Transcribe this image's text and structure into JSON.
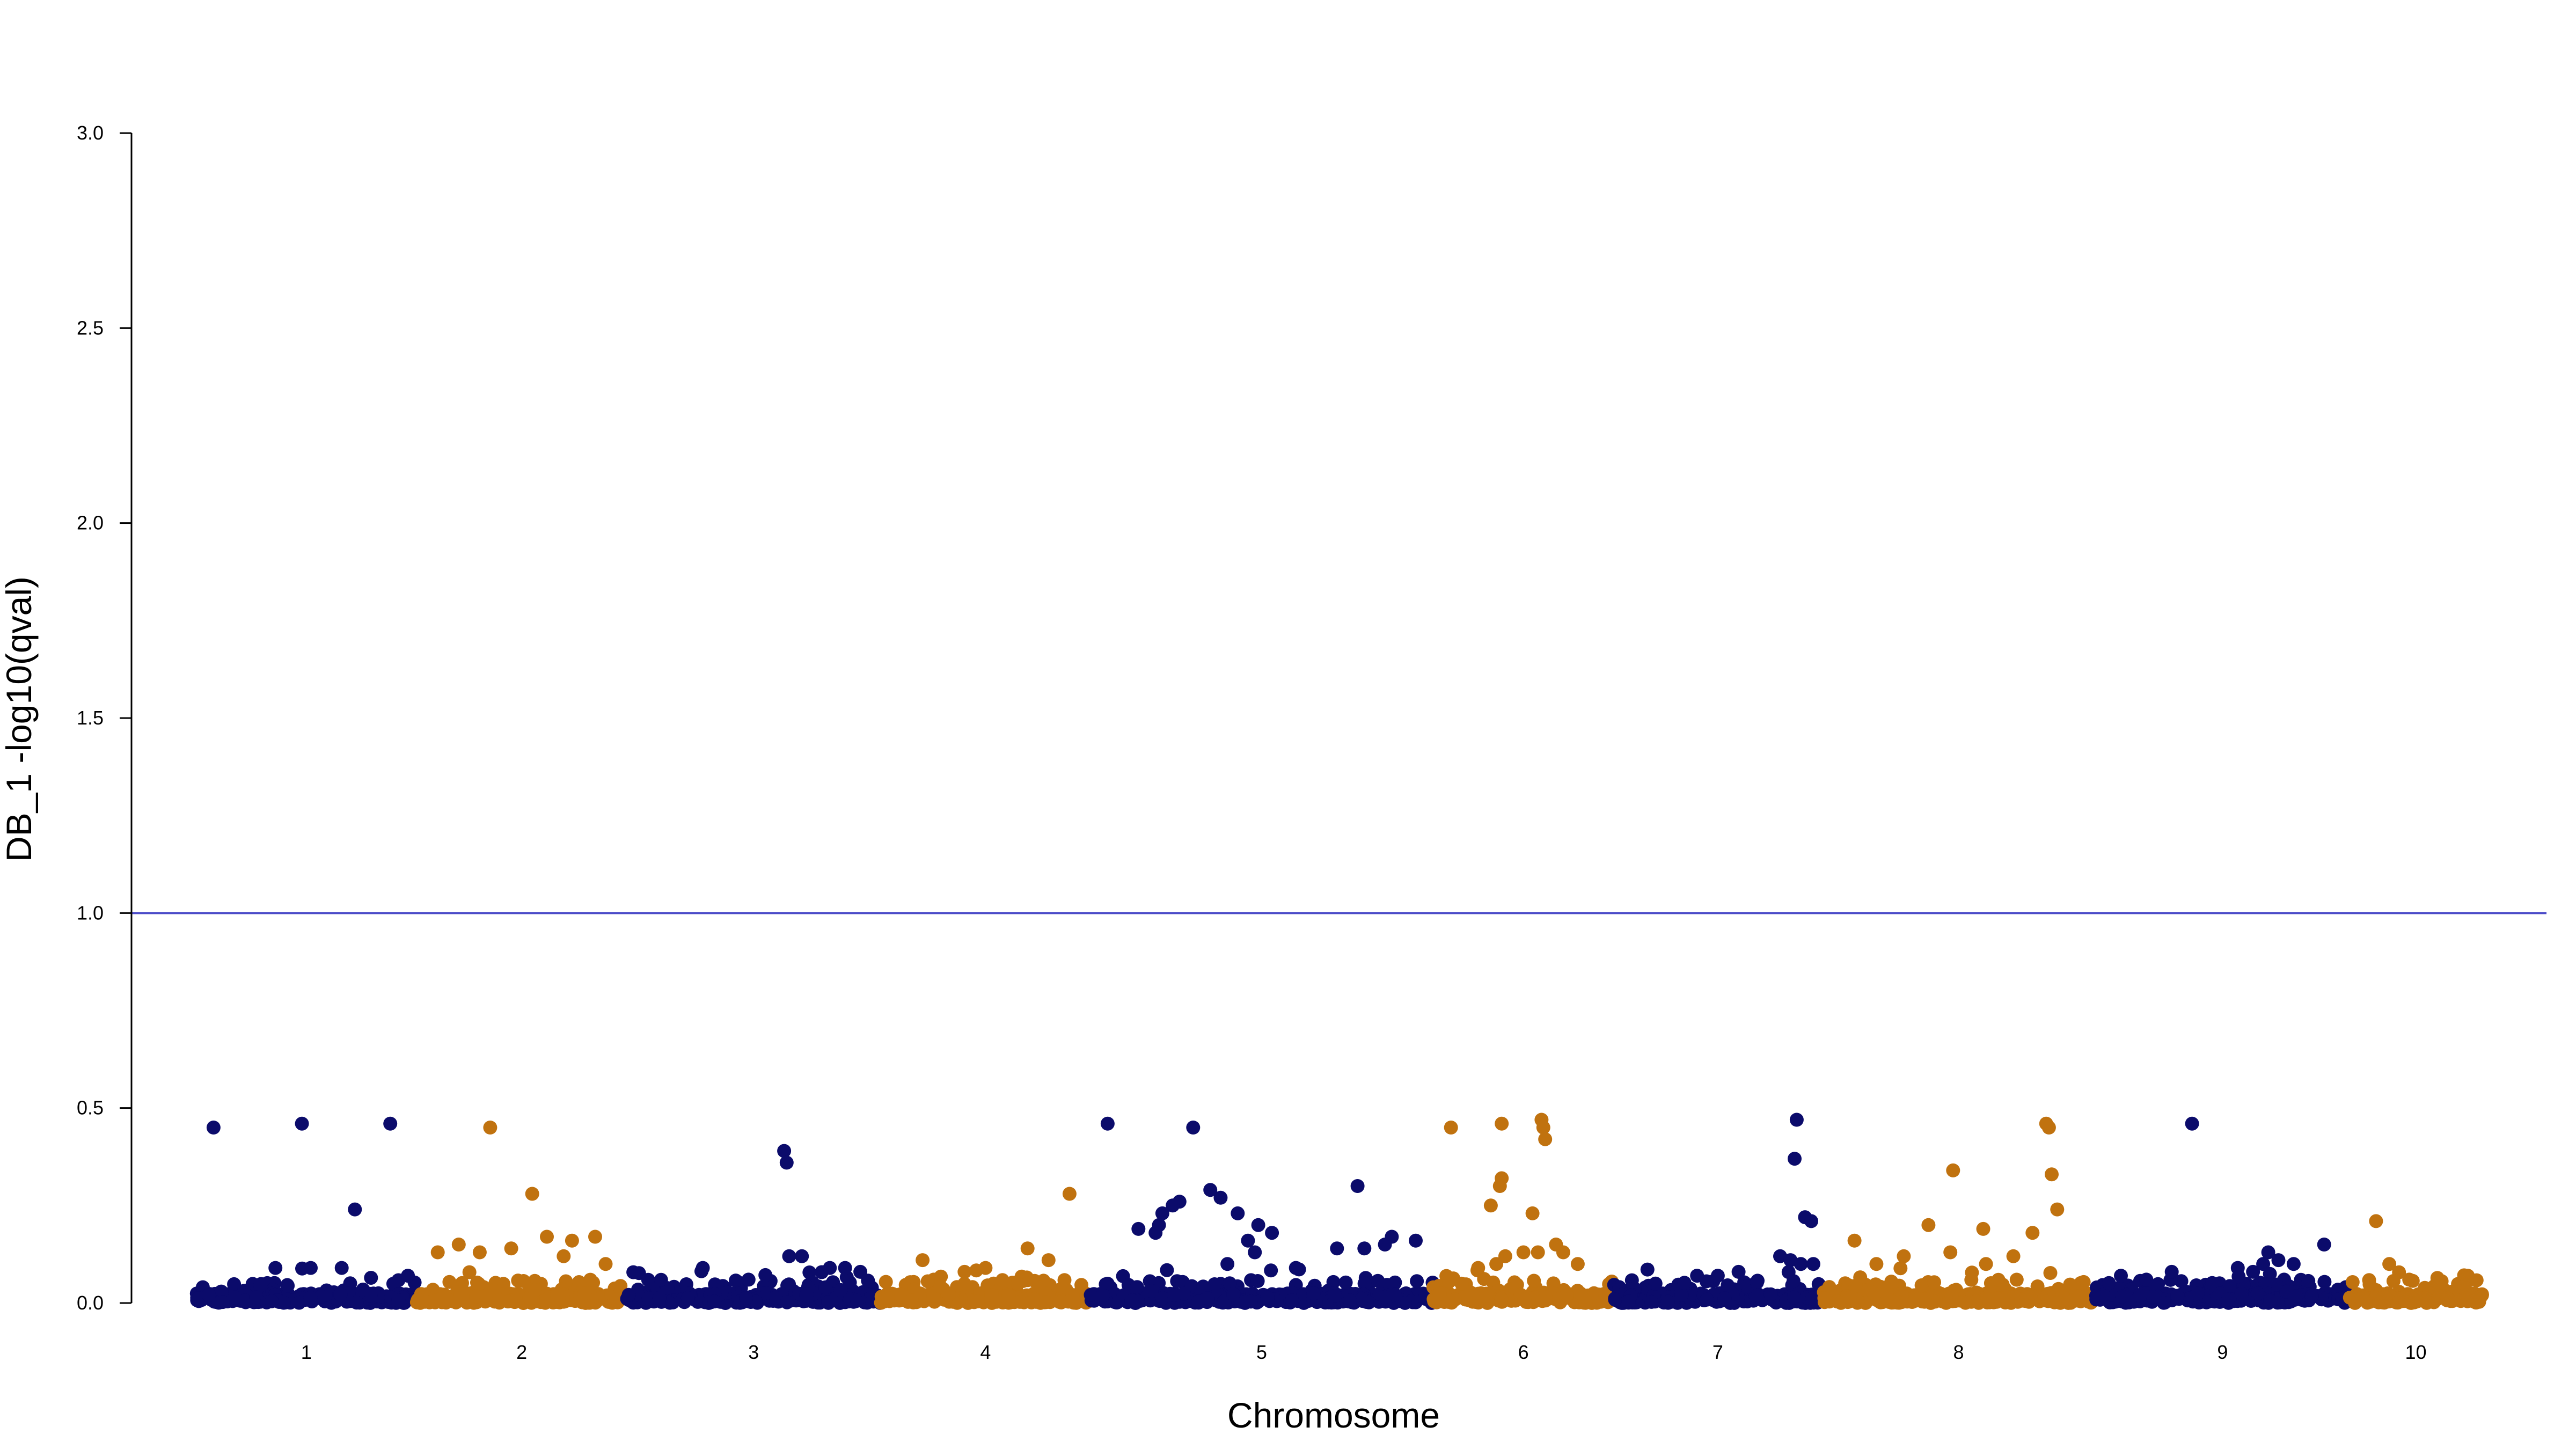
{
  "chart_data": {
    "type": "scatter",
    "subtype": "manhattan",
    "xlabel": "Chromosome",
    "ylabel": "DB_1 -log10(qval)",
    "ylim": [
      0,
      3
    ],
    "yticks": [
      "0.0",
      "0.5",
      "1.0",
      "1.5",
      "2.0",
      "2.5",
      "3.0"
    ],
    "threshold": 1.0,
    "grid": false,
    "colors": {
      "odd": "#0b0b6b",
      "even": "#c0720f",
      "threshold": "#4b4bc8",
      "axis": "#000000"
    },
    "chromosomes": [
      {
        "label": "1",
        "start": 0.0,
        "end": 1.0,
        "peaks": [
          [
            0.08,
            0.45
          ],
          [
            0.48,
            0.46
          ],
          [
            0.88,
            0.46
          ],
          [
            0.72,
            0.24
          ],
          [
            0.66,
            0.09
          ],
          [
            0.36,
            0.09
          ],
          [
            0.52,
            0.09
          ],
          [
            0.96,
            0.07
          ]
        ]
      },
      {
        "label": "2",
        "start": 1.0,
        "end": 1.95,
        "peaks": [
          [
            0.35,
            0.45
          ],
          [
            0.55,
            0.28
          ],
          [
            0.2,
            0.15
          ],
          [
            0.62,
            0.17
          ],
          [
            0.74,
            0.16
          ],
          [
            0.85,
            0.17
          ],
          [
            0.3,
            0.13
          ],
          [
            0.45,
            0.14
          ],
          [
            0.7,
            0.12
          ],
          [
            0.9,
            0.1
          ],
          [
            0.1,
            0.13
          ]
        ]
      },
      {
        "label": "3",
        "start": 1.95,
        "end": 3.1,
        "peaks": [
          [
            0.62,
            0.39
          ],
          [
            0.63,
            0.36
          ],
          [
            0.64,
            0.12
          ],
          [
            0.69,
            0.12
          ],
          [
            0.8,
            0.09
          ],
          [
            0.86,
            0.09
          ],
          [
            0.92,
            0.08
          ],
          [
            0.48,
            0.06
          ],
          [
            0.3,
            0.09
          ]
        ]
      },
      {
        "label": "4",
        "start": 3.1,
        "end": 4.05,
        "peaks": [
          [
            0.9,
            0.28
          ],
          [
            0.7,
            0.14
          ],
          [
            0.2,
            0.11
          ],
          [
            0.8,
            0.11
          ],
          [
            0.5,
            0.09
          ],
          [
            0.4,
            0.08
          ]
        ]
      },
      {
        "label": "5",
        "start": 4.05,
        "end": 5.6,
        "peaks": [
          [
            0.05,
            0.46
          ],
          [
            0.3,
            0.45
          ],
          [
            0.78,
            0.3
          ],
          [
            0.26,
            0.26
          ],
          [
            0.24,
            0.25
          ],
          [
            0.21,
            0.23
          ],
          [
            0.2,
            0.2
          ],
          [
            0.19,
            0.18
          ],
          [
            0.35,
            0.29
          ],
          [
            0.38,
            0.27
          ],
          [
            0.43,
            0.23
          ],
          [
            0.49,
            0.2
          ],
          [
            0.53,
            0.18
          ],
          [
            0.46,
            0.16
          ],
          [
            0.95,
            0.16
          ],
          [
            0.88,
            0.17
          ],
          [
            0.86,
            0.15
          ],
          [
            0.14,
            0.19
          ],
          [
            0.8,
            0.14
          ],
          [
            0.72,
            0.14
          ],
          [
            0.48,
            0.13
          ],
          [
            0.6,
            0.09
          ],
          [
            0.4,
            0.1
          ]
        ]
      },
      {
        "label": "6",
        "start": 5.6,
        "end": 6.42,
        "peaks": [
          [
            0.1,
            0.45
          ],
          [
            0.38,
            0.46
          ],
          [
            0.6,
            0.47
          ],
          [
            0.61,
            0.45
          ],
          [
            0.62,
            0.42
          ],
          [
            0.38,
            0.32
          ],
          [
            0.37,
            0.3
          ],
          [
            0.32,
            0.25
          ],
          [
            0.55,
            0.23
          ],
          [
            0.68,
            0.15
          ],
          [
            0.72,
            0.13
          ],
          [
            0.58,
            0.13
          ],
          [
            0.5,
            0.13
          ],
          [
            0.4,
            0.12
          ],
          [
            0.25,
            0.09
          ],
          [
            0.35,
            0.1
          ],
          [
            0.8,
            0.1
          ]
        ]
      },
      {
        "label": "7",
        "start": 6.42,
        "end": 7.36,
        "peaks": [
          [
            0.88,
            0.47
          ],
          [
            0.87,
            0.37
          ],
          [
            0.92,
            0.22
          ],
          [
            0.95,
            0.21
          ],
          [
            0.8,
            0.12
          ],
          [
            0.85,
            0.11
          ],
          [
            0.9,
            0.1
          ],
          [
            0.96,
            0.1
          ],
          [
            0.4,
            0.07
          ],
          [
            0.5,
            0.07
          ],
          [
            0.6,
            0.08
          ],
          [
            0.2,
            0.05
          ]
        ]
      },
      {
        "label": "8",
        "start": 7.36,
        "end": 8.6,
        "peaks": [
          [
            0.82,
            0.46
          ],
          [
            0.83,
            0.45
          ],
          [
            0.84,
            0.33
          ],
          [
            0.86,
            0.24
          ],
          [
            0.48,
            0.34
          ],
          [
            0.39,
            0.2
          ],
          [
            0.59,
            0.19
          ],
          [
            0.77,
            0.18
          ],
          [
            0.12,
            0.16
          ],
          [
            0.47,
            0.13
          ],
          [
            0.3,
            0.12
          ],
          [
            0.7,
            0.12
          ],
          [
            0.6,
            0.1
          ],
          [
            0.2,
            0.1
          ]
        ]
      },
      {
        "label": "9",
        "start": 8.6,
        "end": 9.75,
        "peaks": [
          [
            0.38,
            0.46
          ],
          [
            0.9,
            0.15
          ],
          [
            0.68,
            0.13
          ],
          [
            0.72,
            0.11
          ],
          [
            0.66,
            0.1
          ],
          [
            0.78,
            0.1
          ],
          [
            0.56,
            0.09
          ],
          [
            0.62,
            0.08
          ],
          [
            0.3,
            0.08
          ],
          [
            0.1,
            0.07
          ],
          [
            0.2,
            0.06
          ]
        ]
      },
      {
        "label": "10",
        "start": 9.75,
        "end": 10.35,
        "peaks": [
          [
            0.2,
            0.21
          ],
          [
            0.3,
            0.1
          ],
          [
            0.45,
            0.06
          ],
          [
            0.7,
            0.04
          ],
          [
            0.85,
            0.04
          ]
        ]
      }
    ]
  }
}
